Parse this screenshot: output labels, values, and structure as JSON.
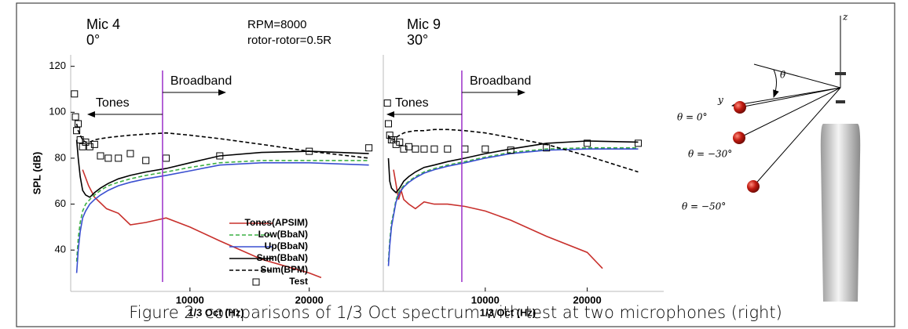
{
  "chart_data": [
    {
      "type": "line",
      "title": "Mic 4",
      "subtitle": "0°",
      "annotations": [
        "RPM=8000",
        "rotor-rotor=0.5R"
      ],
      "divider_x": 7700,
      "left_label": "Tones",
      "right_label": "Broadband",
      "x_label": "1/3 Oct (Hz)",
      "y_label": "SPL (dB)",
      "xlim": [
        0,
        27000
      ],
      "ylim": [
        22,
        125
      ],
      "xticks": [
        10000,
        20000
      ],
      "yticks": [
        40,
        60,
        80,
        100,
        120
      ],
      "legend": "lower right",
      "series": [
        {
          "name": "Tones(APSIM)",
          "color": "#c8302c",
          "x": [
            1000,
            1500,
            2000,
            3000,
            4000,
            5000,
            6300,
            8000,
            10000,
            12500,
            16000,
            20000,
            21000
          ],
          "values": [
            75,
            68,
            63,
            58,
            56,
            51,
            52,
            54,
            50,
            44,
            36,
            30,
            28
          ]
        },
        {
          "name": "Low(BbaN)",
          "color": "#3cb043",
          "dash": true,
          "x": [
            500,
            630,
            800,
            1000,
            1250,
            1600,
            2000,
            2500,
            3150,
            4000,
            5000,
            6300,
            8000,
            10000,
            12500,
            16000,
            20000,
            25000
          ],
          "values": [
            35,
            45,
            52,
            57,
            60,
            62,
            64,
            66,
            68,
            69.5,
            71,
            72.5,
            74,
            76,
            78,
            79,
            79,
            79
          ]
        },
        {
          "name": "Up(BbaN)",
          "color": "#3a4fd0",
          "x": [
            500,
            630,
            800,
            1000,
            1250,
            1600,
            2000,
            2500,
            3150,
            4000,
            5000,
            6300,
            8000,
            10000,
            12500,
            16000,
            20000,
            25000
          ],
          "values": [
            30,
            40,
            48,
            54,
            57,
            60,
            62,
            64,
            66,
            68,
            69.5,
            71,
            72.5,
            74.5,
            77,
            78,
            78,
            77
          ]
        },
        {
          "name": "Sum(BbaN)",
          "color": "#000000",
          "x": [
            500,
            630,
            800,
            1000,
            1250,
            1600,
            2000,
            2500,
            3150,
            4000,
            5000,
            6300,
            8000,
            10000,
            12500,
            16000,
            20000,
            25000
          ],
          "values": [
            88,
            80,
            72,
            66,
            64,
            63,
            65,
            67,
            69,
            71,
            72.5,
            74,
            75.5,
            78,
            81,
            82.5,
            83,
            82
          ]
        },
        {
          "name": "Sum(BPM)",
          "color": "#000000",
          "dash": true,
          "x": [
            500,
            630,
            800,
            1000,
            1250,
            1600,
            2000,
            2500,
            3150,
            4000,
            5000,
            6300,
            8000,
            10000,
            12500,
            16000,
            20000,
            25000
          ],
          "values": [
            95,
            92,
            90,
            88,
            87,
            87,
            88,
            88.5,
            89,
            89.5,
            90,
            90.5,
            91,
            90,
            88.5,
            86,
            83,
            80
          ]
        },
        {
          "name": "Test",
          "color": "#000000",
          "marker": "square",
          "x": [
            315,
            400,
            500,
            630,
            800,
            1000,
            1250,
            1600,
            2000,
            2500,
            3150,
            4000,
            5000,
            6300,
            8000,
            12500,
            20000,
            25000
          ],
          "values": [
            108,
            98,
            92,
            95,
            88,
            85,
            87,
            85,
            86,
            81,
            80,
            80,
            82,
            79,
            80,
            81,
            83,
            84.5
          ]
        }
      ]
    },
    {
      "type": "line",
      "title": "Mic 9",
      "subtitle": "30°",
      "divider_x": 7700,
      "left_label": "Tones",
      "right_label": "Broadband",
      "x_label": "1/3 Oct (Hz)",
      "xlim": [
        0,
        27500
      ],
      "ylim": [
        22,
        125
      ],
      "xticks": [
        10000,
        20000
      ],
      "series": [
        {
          "color": "#c8302c",
          "x": [
            1000,
            1500,
            1750,
            2000,
            2500,
            3150,
            4000,
            5000,
            6300,
            8000,
            10000,
            12500,
            16000,
            20000,
            21500
          ],
          "values": [
            75,
            62,
            66,
            62,
            60,
            58,
            61,
            60,
            60,
            59,
            57,
            53,
            46,
            39,
            32
          ]
        },
        {
          "color": "#3cb043",
          "dash": true,
          "x": [
            500,
            630,
            800,
            1000,
            1250,
            1600,
            2000,
            2500,
            3150,
            4000,
            5000,
            6300,
            8000,
            10000,
            12500,
            16000,
            20000,
            25000
          ],
          "values": [
            35,
            44,
            52,
            56,
            62,
            66,
            68,
            70,
            72,
            74,
            75.5,
            77,
            78.5,
            80.5,
            82.5,
            84,
            84.5,
            84.5
          ]
        },
        {
          "color": "#3a4fd0",
          "x": [
            500,
            630,
            800,
            1000,
            1250,
            1600,
            2000,
            2500,
            3150,
            4000,
            5000,
            6300,
            8000,
            10000,
            12500,
            16000,
            20000,
            25000
          ],
          "values": [
            33,
            42,
            50,
            55,
            61,
            65,
            67.5,
            69.5,
            71.5,
            73.5,
            75,
            76.5,
            78,
            80,
            82,
            83.5,
            84,
            84
          ]
        },
        {
          "color": "#000000",
          "x": [
            500,
            630,
            800,
            1000,
            1250,
            1600,
            2000,
            2500,
            3150,
            4000,
            5000,
            6300,
            8000,
            10000,
            12500,
            16000,
            20000,
            25000
          ],
          "values": [
            80,
            70,
            67,
            66,
            65,
            67,
            70,
            72,
            74,
            76,
            77,
            78.5,
            80,
            82,
            84,
            86.5,
            87.5,
            87
          ]
        },
        {
          "color": "#000000",
          "dash": true,
          "x": [
            500,
            630,
            800,
            1000,
            1250,
            1600,
            2000,
            2500,
            3150,
            4000,
            5000,
            6300,
            8000,
            10000,
            12500,
            16000,
            20000,
            25000
          ],
          "values": [
            90,
            88,
            88,
            88,
            89,
            90,
            91,
            91.5,
            92,
            92,
            92.5,
            92.5,
            92,
            91,
            89,
            86,
            81,
            74
          ]
        },
        {
          "color": "#000000",
          "marker": "square",
          "x": [
            400,
            500,
            630,
            800,
            1000,
            1250,
            1600,
            2000,
            2500,
            3150,
            4000,
            5000,
            6300,
            8000,
            10000,
            12500,
            16000,
            20000,
            25000
          ],
          "values": [
            104,
            95,
            90,
            88,
            88,
            86,
            87,
            84,
            85,
            84,
            84,
            84,
            84,
            84,
            84,
            83.5,
            84.5,
            86.5,
            86.5
          ]
        }
      ]
    }
  ],
  "diagram": {
    "axis_z": "z",
    "axis_y": "y",
    "angle": "θ",
    "mics": [
      "θ = 0°",
      "θ = −30°",
      "θ = −50°"
    ]
  },
  "caption": "Figure 2.  comparisons of 1/3 Oct spectrum with test at two microphones (right)"
}
